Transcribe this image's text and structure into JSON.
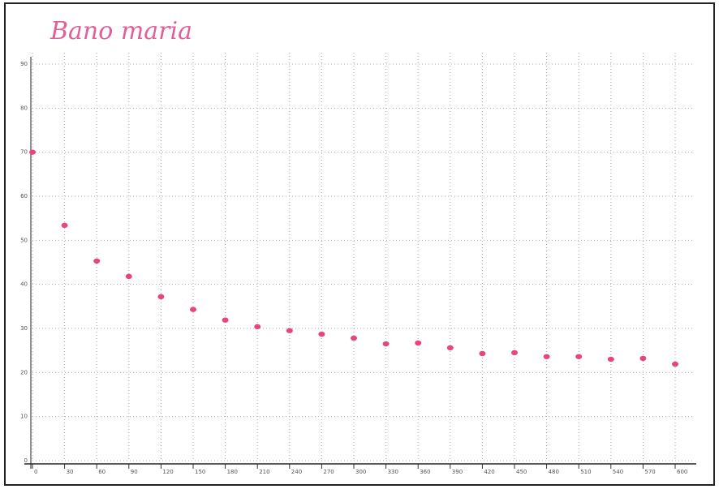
{
  "chart_data": {
    "type": "scatter",
    "title": "Bano maria",
    "x": [
      0,
      30,
      60,
      90,
      120,
      150,
      180,
      210,
      240,
      270,
      300,
      330,
      360,
      390,
      420,
      450,
      480,
      510,
      540,
      570,
      600
    ],
    "values": [
      70,
      53.4,
      45.3,
      41.8,
      37.2,
      34.3,
      31.9,
      30.4,
      29.5,
      28.7,
      27.8,
      26.5,
      26.7,
      25.6,
      24.3,
      24.5,
      23.6,
      23.6,
      23,
      23.2,
      21.9
    ],
    "color": "#e8457a",
    "xlim": [
      0,
      600
    ],
    "xticks": [
      0,
      30,
      60,
      90,
      120,
      150,
      180,
      210,
      240,
      270,
      300,
      330,
      360,
      390,
      420,
      450,
      480,
      510,
      540,
      570,
      600
    ],
    "ylim": [
      0,
      90
    ],
    "yticks": [
      0,
      10,
      20,
      30,
      40,
      50,
      60,
      70,
      80,
      90
    ],
    "grid": true
  }
}
